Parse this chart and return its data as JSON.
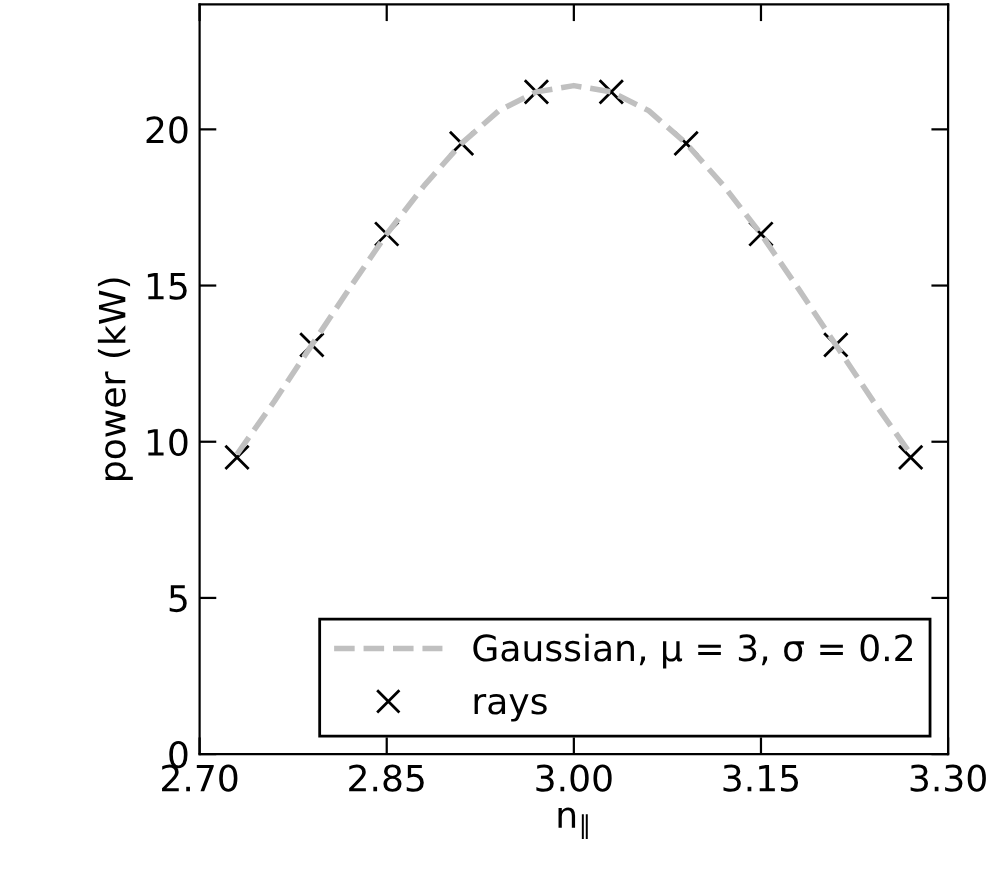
{
  "chart_data": {
    "type": "line",
    "xlabel": "n$_{∥}$",
    "ylabel": "power (kW)",
    "xlim": [
      2.7,
      3.3
    ],
    "ylim": [
      0,
      24
    ],
    "xticks": [
      {
        "value": 2.7,
        "label": "2.70"
      },
      {
        "value": 2.85,
        "label": "2.85"
      },
      {
        "value": 3.0,
        "label": "3.00"
      },
      {
        "value": 3.15,
        "label": "3.15"
      },
      {
        "value": 3.3,
        "label": "3.30"
      }
    ],
    "yticks": [
      0,
      5,
      10,
      15,
      20
    ],
    "grid": false,
    "legend": "bottom right",
    "series": [
      {
        "name": "Gaussian, μ = 3, σ = 0.2",
        "color": "#c0c0c0",
        "line_style": "dashed",
        "marker": "none",
        "x": [
          2.73,
          2.76,
          2.79,
          2.82,
          2.85,
          2.88,
          2.91,
          2.94,
          2.97,
          3.0,
          3.03,
          3.06,
          3.09,
          3.12,
          3.15,
          3.18,
          3.21,
          3.24,
          3.27
        ],
        "values": [
          9.6,
          11.3,
          13.1,
          14.9,
          16.65,
          18.2,
          19.55,
          20.6,
          21.2,
          21.4,
          21.2,
          20.6,
          19.55,
          18.2,
          16.65,
          14.9,
          13.1,
          11.3,
          9.6
        ]
      },
      {
        "name": "rays",
        "type": "scatter",
        "color": "#000000",
        "marker": "cross",
        "x": [
          2.73,
          2.79,
          2.85,
          2.91,
          2.97,
          3.03,
          3.09,
          3.15,
          3.21,
          3.27
        ],
        "values": [
          9.5,
          13.1,
          16.65,
          19.55,
          21.2,
          21.2,
          19.55,
          16.65,
          13.1,
          9.5
        ]
      }
    ]
  }
}
